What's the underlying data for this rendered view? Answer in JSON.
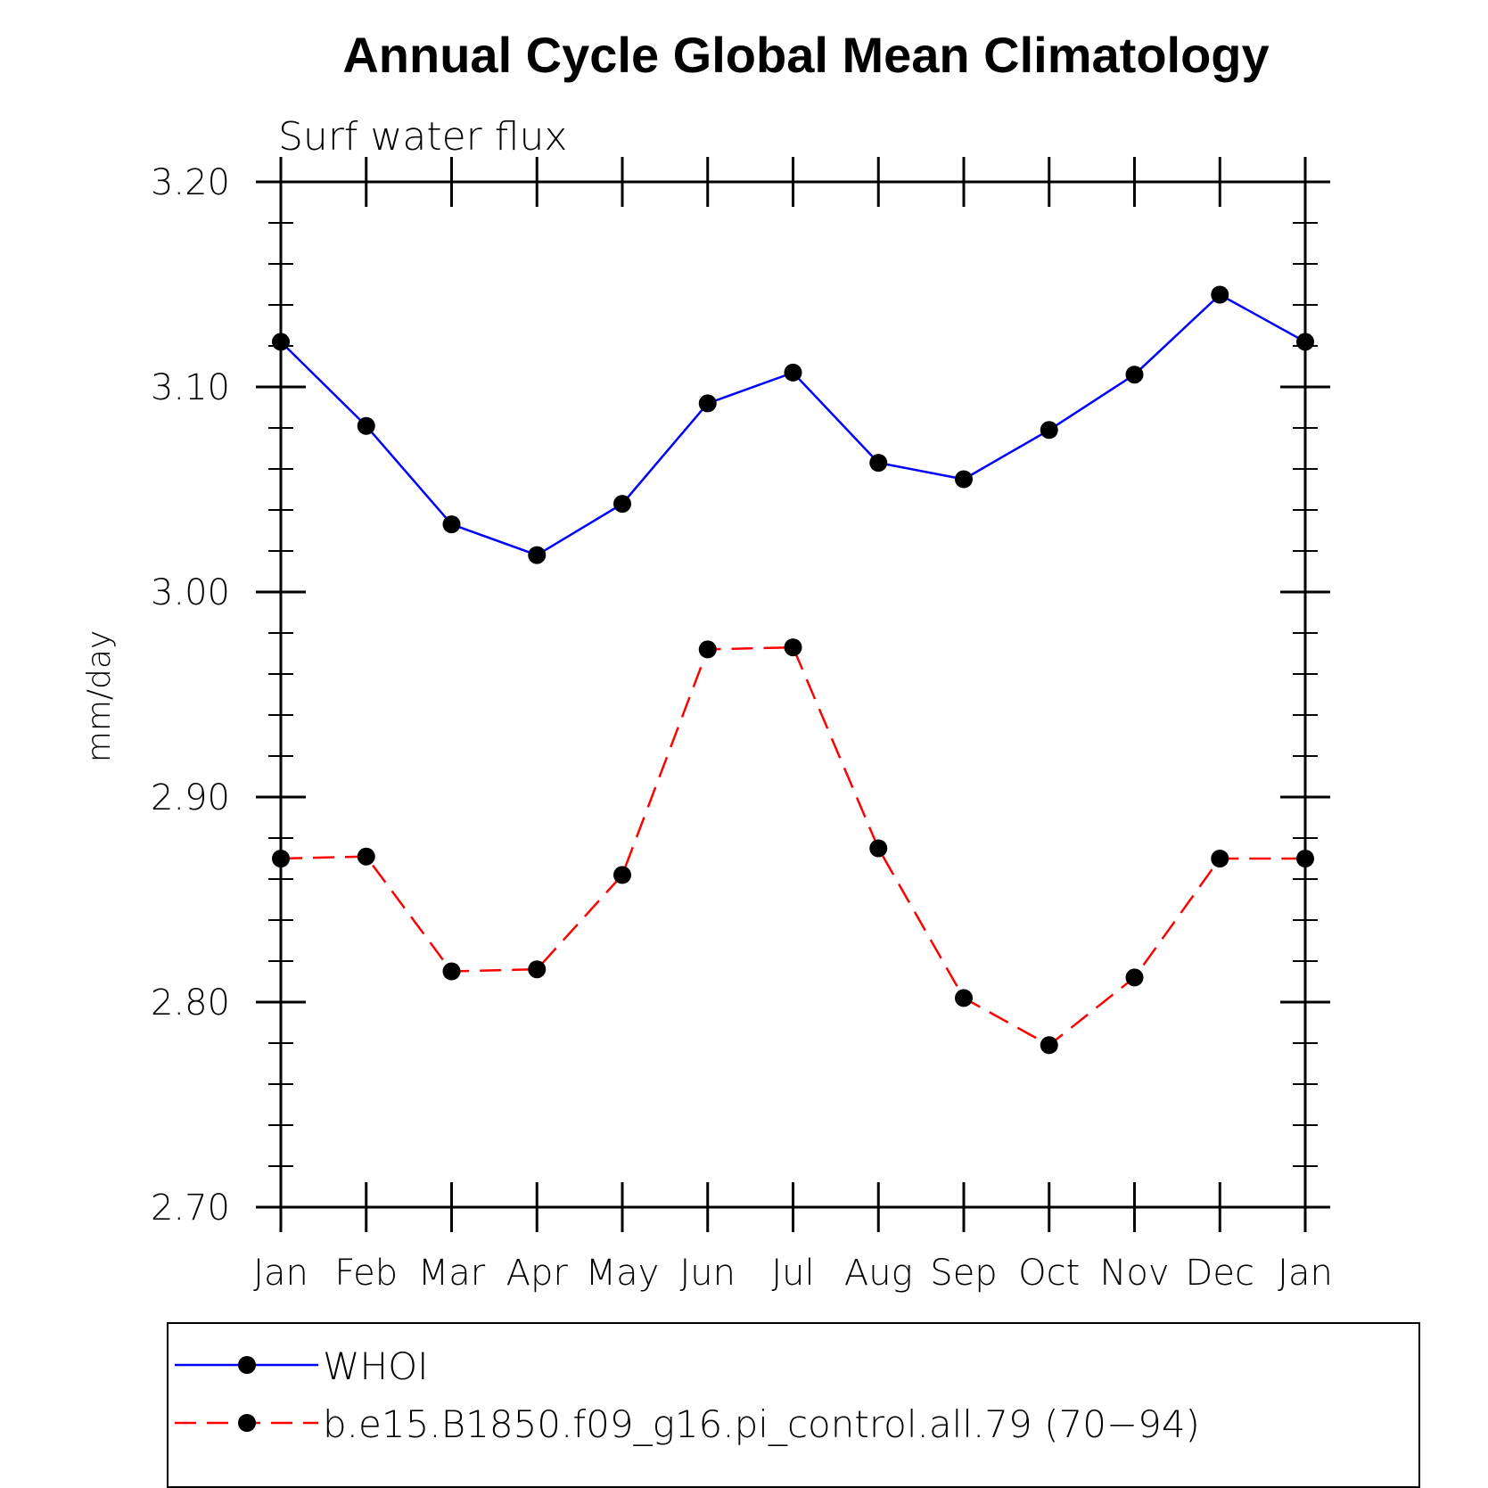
{
  "chart_data": {
    "type": "line",
    "title": "Annual Cycle Global Mean Climatology",
    "subtitle": "Surf water flux",
    "xlabel": "",
    "ylabel": "mm/day",
    "categories": [
      "Jan",
      "Feb",
      "Mar",
      "Apr",
      "May",
      "Jun",
      "Jul",
      "Aug",
      "Sep",
      "Oct",
      "Nov",
      "Dec",
      "Jan"
    ],
    "ylim": [
      2.7,
      3.2
    ],
    "yticks": [
      "2.70",
      "2.80",
      "2.90",
      "3.00",
      "3.10",
      "3.20"
    ],
    "grid": false,
    "legend_position": "bottom",
    "series": [
      {
        "name": "WHOI",
        "color": "#0000ff",
        "line_style": "solid",
        "marker": "filled-circle",
        "values": [
          3.122,
          3.081,
          3.033,
          3.018,
          3.043,
          3.092,
          3.107,
          3.063,
          3.055,
          3.079,
          3.106,
          3.145,
          3.122
        ]
      },
      {
        "name": "b.e15.B1850.f09_g16.pi_control.all.79 (70−94)",
        "color": "#ff0000",
        "line_style": "dashed",
        "marker": "filled-circle",
        "values": [
          2.87,
          2.871,
          2.815,
          2.816,
          2.862,
          2.972,
          2.973,
          2.875,
          2.802,
          2.779,
          2.812,
          2.87,
          2.87
        ]
      }
    ]
  }
}
